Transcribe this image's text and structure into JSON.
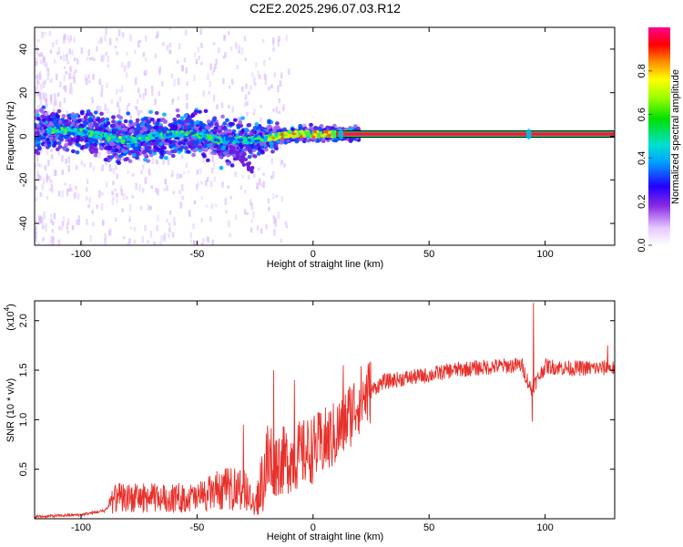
{
  "title": "C2E2.2025.296.07.03.R12",
  "chart_data": [
    {
      "type": "heatmap",
      "name": "spectrogram",
      "xlabel": "Height of straight line (km)",
      "ylabel": "Frequency (Hz)",
      "xlim": [
        -120,
        130
      ],
      "ylim": [
        -50,
        50
      ],
      "xticks": [
        -100,
        -50,
        0,
        50,
        100
      ],
      "xtick_labels": [
        "-100",
        "-50",
        "0",
        "50",
        "100"
      ],
      "yticks": [
        -40,
        -20,
        0,
        20,
        40
      ],
      "ytick_labels": [
        "-40",
        "-20",
        "0",
        "20",
        "40"
      ],
      "ridge": [
        {
          "x": -120,
          "y": 2
        },
        {
          "x": -110,
          "y": 3
        },
        {
          "x": -100,
          "y": 2
        },
        {
          "x": -90,
          "y": 0
        },
        {
          "x": -80,
          "y": -2
        },
        {
          "x": -70,
          "y": 0
        },
        {
          "x": -60,
          "y": 1
        },
        {
          "x": -50,
          "y": 1
        },
        {
          "x": -40,
          "y": -2
        },
        {
          "x": -30,
          "y": -2
        },
        {
          "x": -20,
          "y": -1
        },
        {
          "x": -10,
          "y": 1
        },
        {
          "x": 0,
          "y": 1
        },
        {
          "x": 10,
          "y": 1
        },
        {
          "x": 130,
          "y": 1
        }
      ],
      "colorbar": {
        "label": "Normalized spectral amplitude",
        "ticks": [
          0.0,
          0.2,
          0.4,
          0.6,
          0.8
        ],
        "tick_labels": [
          "0.0",
          "0.2",
          "0.4",
          "0.6",
          "0.8"
        ],
        "range": [
          0,
          1
        ]
      }
    },
    {
      "type": "line",
      "name": "snr",
      "xlabel": "Height of straight line (km)",
      "ylabel": "SNR (10 * v/v)",
      "multiplier": "(x10",
      "multiplier_exp": "4",
      "multiplier_close": ")",
      "xlim": [
        -120,
        130
      ],
      "ylim": [
        0,
        2.2
      ],
      "xticks": [
        -100,
        -50,
        0,
        50,
        100
      ],
      "xtick_labels": [
        "-100",
        "-50",
        "0",
        "50",
        "100"
      ],
      "yticks": [
        0.5,
        1.0,
        1.5,
        2.0
      ],
      "ytick_labels": [
        "0.5",
        "1.0",
        "1.5",
        "2.0"
      ],
      "color": "#e8302a",
      "envelope": [
        {
          "x": -120,
          "y": 0.02
        },
        {
          "x": -100,
          "y": 0.04
        },
        {
          "x": -90,
          "y": 0.08
        },
        {
          "x": -85,
          "y": 0.2
        },
        {
          "x": -70,
          "y": 0.2
        },
        {
          "x": -50,
          "y": 0.2
        },
        {
          "x": -40,
          "y": 0.28
        },
        {
          "x": -30,
          "y": 0.3
        },
        {
          "x": -25,
          "y": 0.12
        },
        {
          "x": -20,
          "y": 0.55
        },
        {
          "x": -10,
          "y": 0.6
        },
        {
          "x": 0,
          "y": 0.7
        },
        {
          "x": 10,
          "y": 0.85
        },
        {
          "x": 20,
          "y": 1.2
        },
        {
          "x": 30,
          "y": 1.38
        },
        {
          "x": 40,
          "y": 1.42
        },
        {
          "x": 50,
          "y": 1.45
        },
        {
          "x": 60,
          "y": 1.5
        },
        {
          "x": 70,
          "y": 1.52
        },
        {
          "x": 80,
          "y": 1.54
        },
        {
          "x": 90,
          "y": 1.55
        },
        {
          "x": 94,
          "y": 1.3
        },
        {
          "x": 100,
          "y": 1.54
        },
        {
          "x": 110,
          "y": 1.52
        },
        {
          "x": 120,
          "y": 1.52
        },
        {
          "x": 130,
          "y": 1.52
        }
      ],
      "spikes": [
        {
          "x": -30,
          "y": 0.95
        },
        {
          "x": -17,
          "y": 1.5
        },
        {
          "x": -8,
          "y": 1.4
        },
        {
          "x": 13,
          "y": 1.55
        },
        {
          "x": 95,
          "y": 2.18
        },
        {
          "x": 94.5,
          "y": 0.98
        },
        {
          "x": 127,
          "y": 1.75
        }
      ]
    }
  ]
}
